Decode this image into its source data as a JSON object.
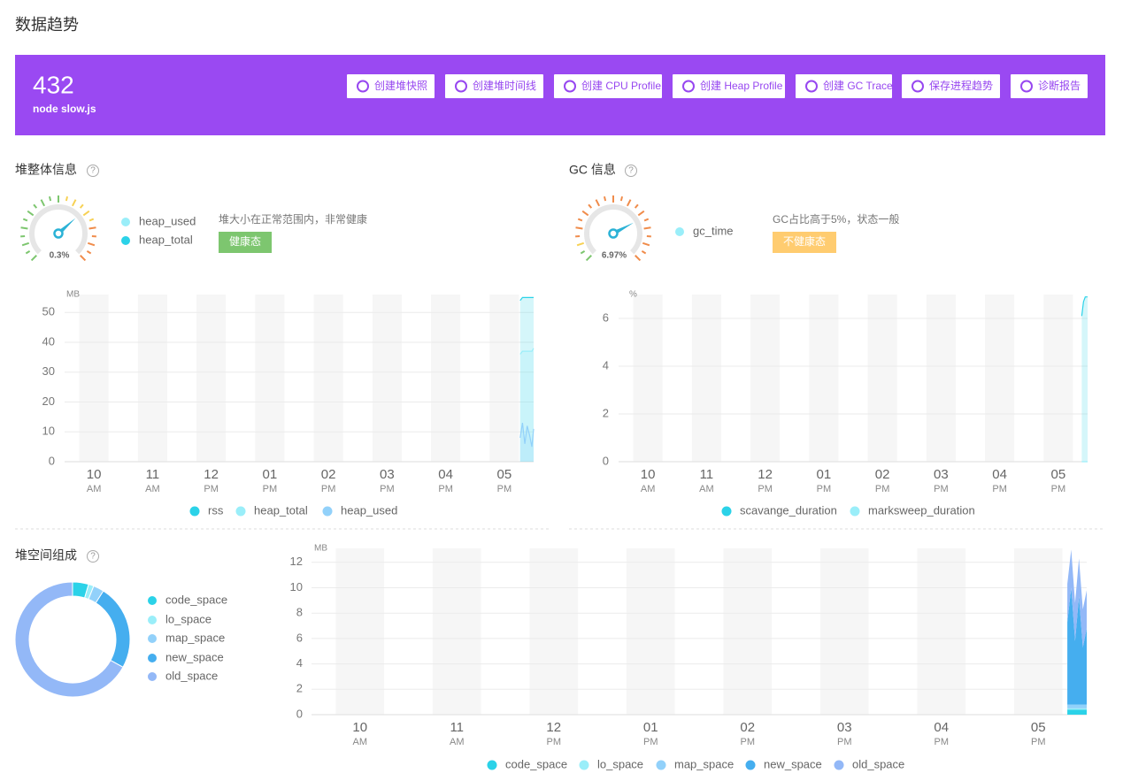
{
  "header": {
    "title": "数据趋势"
  },
  "banner": {
    "pid": "432",
    "command": "node slow.js",
    "buttons": [
      "创建堆快照",
      "创建堆时间线",
      "创建 CPU Profile",
      "创建 Heap Profile",
      "创建 GC Trace",
      "保存进程趋势",
      "诊断报告"
    ]
  },
  "heap_panel": {
    "title": "堆整体信息",
    "help": "?",
    "gauge_label": "0.3%",
    "legend": [
      {
        "name": "heap_used",
        "color": "#9aeef9"
      },
      {
        "name": "heap_total",
        "color": "#2bd2e8"
      }
    ],
    "message": "堆大小在正常范围内，非常健康",
    "status": "健康态"
  },
  "gc_panel": {
    "title": "GC 信息",
    "help": "?",
    "gauge_label": "6.97%",
    "legend": [
      {
        "name": "gc_time",
        "color": "#9aeef9"
      }
    ],
    "message": "GC占比高于5%，状态一般",
    "status": "不健康态"
  },
  "space_panel": {
    "title": "堆空间组成",
    "help": "?"
  },
  "chart_data": [
    {
      "type": "line",
      "ylabel": "MB",
      "x": [
        17.27,
        17.31,
        17.35,
        17.39,
        17.43,
        17.47,
        17.5
      ],
      "xlim": [
        9.5,
        17.5
      ],
      "xticks": [
        {
          "value": 10,
          "label": "10",
          "period": "AM"
        },
        {
          "value": 11,
          "label": "11",
          "period": "AM"
        },
        {
          "value": 12,
          "label": "12",
          "period": "PM"
        },
        {
          "value": 13,
          "label": "01",
          "period": "PM"
        },
        {
          "value": 14,
          "label": "02",
          "period": "PM"
        },
        {
          "value": 15,
          "label": "03",
          "period": "PM"
        },
        {
          "value": 16,
          "label": "04",
          "period": "PM"
        },
        {
          "value": 17,
          "label": "05",
          "period": "PM"
        }
      ],
      "ylim": [
        0,
        56
      ],
      "yticks": [
        0,
        10,
        20,
        30,
        40,
        50
      ],
      "grid": true,
      "series": [
        {
          "name": "rss",
          "color": "#2bd2e8",
          "values": [
            54,
            55,
            55,
            55,
            55,
            55,
            55
          ]
        },
        {
          "name": "heap_total",
          "color": "#9aeef9",
          "values": [
            36,
            37,
            37,
            37,
            37,
            37,
            38
          ]
        },
        {
          "name": "heap_used",
          "color": "#92d1fa",
          "values": [
            8,
            13,
            6,
            12,
            9,
            5,
            11
          ]
        }
      ]
    },
    {
      "type": "line",
      "ylabel": "%",
      "x": [
        17.4,
        17.43,
        17.46,
        17.5
      ],
      "xlim": [
        9.5,
        17.5
      ],
      "xticks": [
        {
          "value": 10,
          "label": "10",
          "period": "AM"
        },
        {
          "value": 11,
          "label": "11",
          "period": "AM"
        },
        {
          "value": 12,
          "label": "12",
          "period": "PM"
        },
        {
          "value": 13,
          "label": "01",
          "period": "PM"
        },
        {
          "value": 14,
          "label": "02",
          "period": "PM"
        },
        {
          "value": 15,
          "label": "03",
          "period": "PM"
        },
        {
          "value": 16,
          "label": "04",
          "period": "PM"
        },
        {
          "value": 17,
          "label": "05",
          "period": "PM"
        }
      ],
      "ylim": [
        0,
        7
      ],
      "yticks": [
        0,
        2,
        4,
        6
      ],
      "grid": true,
      "series": [
        {
          "name": "scavange_duration",
          "color": "#2bd2e8",
          "values": [
            6.1,
            6.7,
            6.9,
            6.9
          ]
        },
        {
          "name": "marksweep_duration",
          "color": "#9aeef9",
          "values": [
            0,
            0,
            0,
            0
          ]
        }
      ]
    },
    {
      "type": "pie",
      "donut": true,
      "categories": [
        "code_space",
        "lo_space",
        "map_space",
        "new_space",
        "old_space"
      ],
      "colors": [
        "#2bd2e8",
        "#9aeef9",
        "#92d1fa",
        "#45aeef",
        "#93b8f7"
      ],
      "values": [
        4.5,
        1.5,
        3,
        24,
        67
      ]
    },
    {
      "type": "area",
      "stacked": true,
      "ylabel": "MB",
      "x": [
        17.3,
        17.34,
        17.38,
        17.42,
        17.46,
        17.5
      ],
      "xlim": [
        9.5,
        17.5
      ],
      "xticks": [
        {
          "value": 10,
          "label": "10",
          "period": "AM"
        },
        {
          "value": 11,
          "label": "11",
          "period": "AM"
        },
        {
          "value": 12,
          "label": "12",
          "period": "PM"
        },
        {
          "value": 13,
          "label": "01",
          "period": "PM"
        },
        {
          "value": 14,
          "label": "02",
          "period": "PM"
        },
        {
          "value": 15,
          "label": "03",
          "period": "PM"
        },
        {
          "value": 16,
          "label": "04",
          "period": "PM"
        },
        {
          "value": 17,
          "label": "05",
          "period": "PM"
        }
      ],
      "ylim": [
        0,
        13.1
      ],
      "yticks": [
        0,
        2,
        4,
        6,
        8,
        10,
        12
      ],
      "grid": true,
      "series": [
        {
          "name": "code_space",
          "color": "#2bd2e8",
          "values": [
            0.4,
            0.4,
            0.4,
            0.4,
            0.4,
            0.4
          ]
        },
        {
          "name": "lo_space",
          "color": "#9aeef9",
          "values": [
            0.1,
            0.1,
            0.1,
            0.1,
            0.1,
            0.1
          ]
        },
        {
          "name": "map_space",
          "color": "#92d1fa",
          "values": [
            0.3,
            0.3,
            0.3,
            0.3,
            0.3,
            0.3
          ]
        },
        {
          "name": "new_space",
          "color": "#45aeef",
          "values": [
            6.5,
            9.2,
            5,
            8.5,
            4.5,
            6
          ]
        },
        {
          "name": "old_space",
          "color": "#93b8f7",
          "values": [
            3,
            3,
            3,
            3,
            3,
            3
          ]
        }
      ]
    }
  ]
}
